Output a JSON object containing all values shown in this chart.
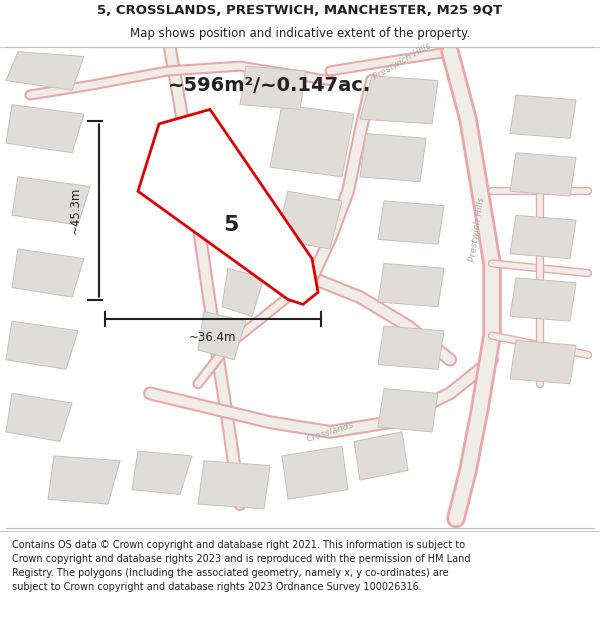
{
  "title_line1": "5, CROSSLANDS, PRESTWICH, MANCHESTER, M25 9QT",
  "title_line2": "Map shows position and indicative extent of the property.",
  "area_text": "~596m²/~0.147ac.",
  "dim_height": "~45.3m",
  "dim_width": "~36.4m",
  "plot_number": "5",
  "footer_text": "Contains OS data © Crown copyright and database right 2021. This information is subject to Crown copyright and database rights 2023 and is reproduced with the permission of HM Land Registry. The polygons (including the associated geometry, namely x, y co-ordinates) are subject to Crown copyright and database rights 2023 Ordnance Survey 100026316.",
  "map_bg": "#f7f6f4",
  "plot_fill": "#ffffff",
  "plot_stroke": "#dd0000",
  "road_color": "#e8a8a8",
  "road_center": "#f0ece8",
  "building_fill": "#e0ddd8",
  "building_stroke": "#c8c0b8",
  "dim_line_color": "#222222",
  "text_color": "#222222",
  "label_color": "#aaaaaa"
}
